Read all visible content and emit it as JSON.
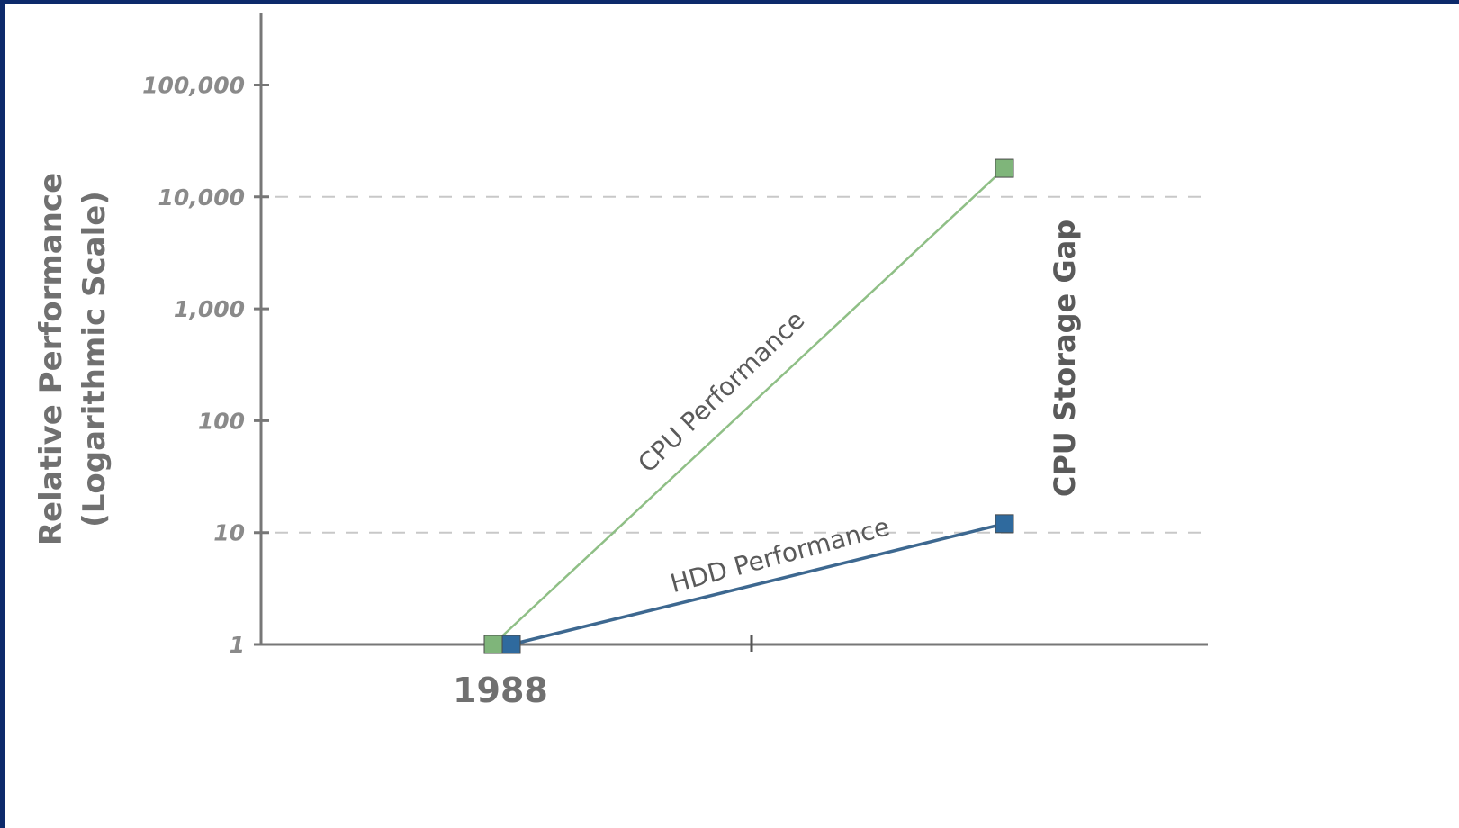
{
  "chart_data": {
    "type": "line",
    "ylabel_line1": "Relative Performance",
    "ylabel_line2": "(Logarithmic Scale)",
    "y_scale": "log",
    "ylim": [
      1,
      400000
    ],
    "y_ticks": [
      {
        "value": 1,
        "label": "1"
      },
      {
        "value": 10,
        "label": "10"
      },
      {
        "value": 100,
        "label": "100"
      },
      {
        "value": 1000,
        "label": "1,000"
      },
      {
        "value": 10000,
        "label": "10,000"
      },
      {
        "value": 100000,
        "label": "100,000"
      }
    ],
    "y_gridlines": [
      10,
      10000
    ],
    "x_tick_labels": [
      "1988"
    ],
    "series": [
      {
        "name": "CPU Performance",
        "color": "#8fbf86",
        "marker_color": "#7fb57a",
        "x": [
          0,
          1
        ],
        "values": [
          1,
          18000
        ]
      },
      {
        "name": "HDD Performance",
        "color": "#3d6890",
        "marker_color": "#2f6a9e",
        "x": [
          0,
          1
        ],
        "values": [
          1,
          12
        ]
      }
    ],
    "annotation": "CPU Storage Gap",
    "grid": "dashed horizontal at 10 and 10,000",
    "legend": "none (series labelled inline)"
  }
}
